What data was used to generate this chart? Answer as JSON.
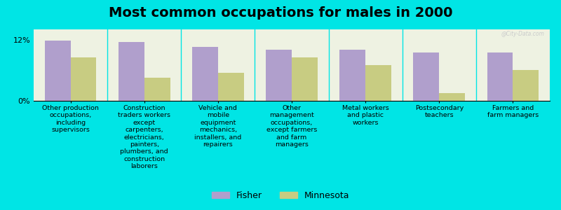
{
  "title": "Most common occupations for males in 2000",
  "categories": [
    "Other production\noccupations,\nincluding\nsupervisors",
    "Construction\ntraders workers\nexcept\ncarpenters,\nelectricians,\npainters,\nplumbers, and\nconstruction\nlaborers",
    "Vehicle and\nmobile\nequipment\nmechanics,\ninstallers, and\nrepairers",
    "Other\nmanagement\noccupations,\nexcept farmers\nand farm\nmanagers",
    "Metal workers\nand plastic\nworkers",
    "Postsecondary\nteachers",
    "Farmers and\nfarm managers"
  ],
  "fisher_values": [
    11.8,
    11.5,
    10.5,
    10.0,
    10.0,
    9.5,
    9.5
  ],
  "minnesota_values": [
    8.5,
    4.5,
    5.5,
    8.5,
    7.0,
    1.5,
    6.0
  ],
  "fisher_color": "#b09fcc",
  "minnesota_color": "#c8cc82",
  "background_color": "#00e5e5",
  "plot_bg_color": "#eef2e2",
  "ylim": [
    0,
    14
  ],
  "ytick_labels": [
    "0%",
    "12%"
  ],
  "bar_width": 0.35,
  "legend_labels": [
    "Fisher",
    "Minnesota"
  ],
  "watermark": "@City-Data.com",
  "title_fontsize": 14,
  "tick_fontsize": 8,
  "legend_fontsize": 9,
  "label_fontsize": 6.8
}
